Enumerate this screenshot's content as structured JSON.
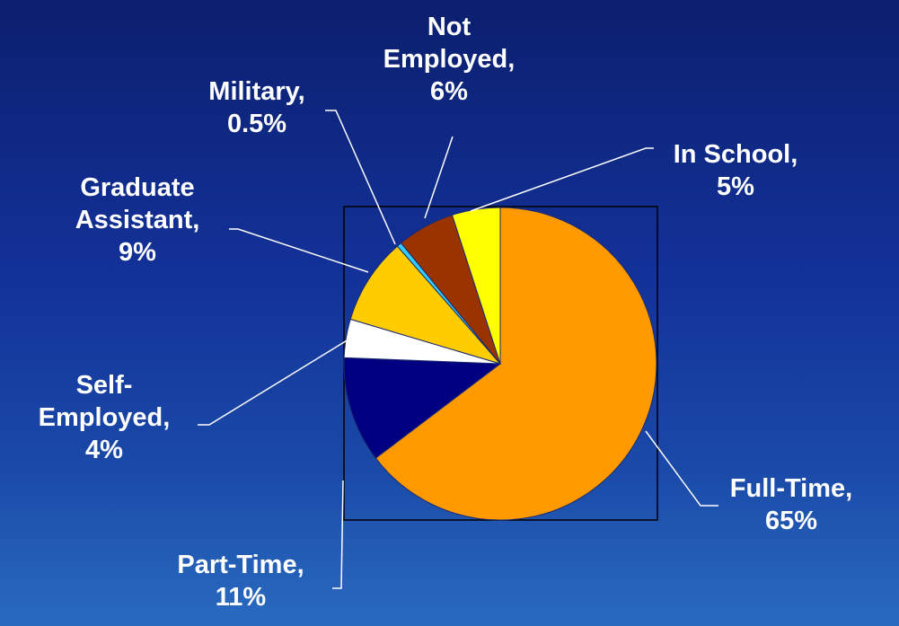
{
  "chart_data": {
    "type": "pie",
    "title": "",
    "slices": [
      {
        "label": "Full-Time",
        "value": 65,
        "value_label": "65%",
        "color": "#ff9900"
      },
      {
        "label": "Part-Time",
        "value": 11,
        "value_label": "11%",
        "color": "#000080"
      },
      {
        "label": "Self-Employed",
        "value": 4,
        "value_label": "4%",
        "color": "#ffffff"
      },
      {
        "label": "Graduate Assistant",
        "value": 9,
        "value_label": "9%",
        "color": "#ffcc00"
      },
      {
        "label": "Military",
        "value": 0.5,
        "value_label": "0.5%",
        "color": "#33ccff"
      },
      {
        "label": "Not Employed",
        "value": 6,
        "value_label": "6%",
        "color": "#993300"
      },
      {
        "label": "In School",
        "value": 5,
        "value_label": "5%",
        "color": "#ffff00"
      }
    ],
    "label_lines": [
      [
        "Full-Time,",
        "65%"
      ],
      [
        "Part-Time,",
        "11%"
      ],
      [
        "Self-",
        "Employed,",
        "4%"
      ],
      [
        "Graduate",
        "Assistant,",
        "9%"
      ],
      [
        "Military,",
        "0.5%"
      ],
      [
        "Not",
        "Employed,",
        "6%"
      ],
      [
        "In School,",
        "5%"
      ]
    ],
    "legend": "none",
    "plot_area_border": true
  }
}
